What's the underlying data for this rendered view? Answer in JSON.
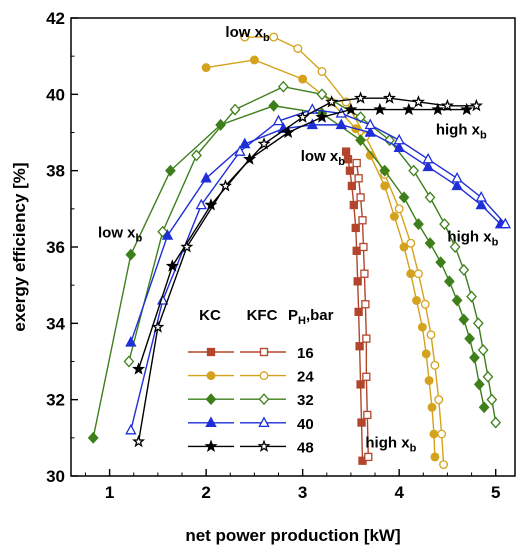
{
  "chart_data": {
    "type": "line",
    "xlabel": "net power production [kW]",
    "ylabel": "exergy efficiency [%]",
    "xlim": [
      0.6,
      5.2
    ],
    "ylim": [
      30,
      42
    ],
    "xticks": [
      1,
      2,
      3,
      4,
      5
    ],
    "yticks": [
      30,
      32,
      34,
      36,
      38,
      40,
      42
    ],
    "grid": false,
    "legend": {
      "position": "bottom-center",
      "col1": "KC",
      "col2": "KFC",
      "col3_main": "P",
      "col3_sub": "H",
      "col3_tail": ",bar",
      "labels": [
        "16",
        "24",
        "32",
        "40",
        "48"
      ]
    },
    "annotations": [
      {
        "main": "low x",
        "sub": "b",
        "x": 2.2,
        "y": 41.5
      },
      {
        "main": "low x",
        "sub": "b",
        "x": 2.98,
        "y": 38.25
      },
      {
        "main": "low x",
        "sub": "b",
        "x": 0.88,
        "y": 36.25
      },
      {
        "main": "high x",
        "sub": "b",
        "x": 4.38,
        "y": 38.95
      },
      {
        "main": "high x",
        "sub": "b",
        "x": 4.5,
        "y": 36.15
      },
      {
        "main": "high x",
        "sub": "b",
        "x": 3.65,
        "y": 30.75
      }
    ],
    "series": [
      {
        "group": "KC",
        "legend_label": "16",
        "color": "#b2452c",
        "marker": "square",
        "filled": true,
        "x": [
          3.62,
          3.61,
          3.6,
          3.59,
          3.58,
          3.57,
          3.56,
          3.55,
          3.53,
          3.51,
          3.49,
          3.47,
          3.45
        ],
        "y": [
          30.4,
          31.4,
          32.4,
          33.4,
          34.3,
          35.1,
          35.9,
          36.5,
          37.1,
          37.6,
          38.0,
          38.3,
          38.5
        ]
      },
      {
        "group": "KFC",
        "legend_label": "16",
        "color": "#b2452c",
        "marker": "square",
        "filled": false,
        "x": [
          3.68,
          3.67,
          3.66,
          3.66,
          3.65,
          3.64,
          3.63,
          3.62,
          3.6,
          3.58,
          3.56
        ],
        "y": [
          30.5,
          31.6,
          32.6,
          33.6,
          34.5,
          35.3,
          36.0,
          36.7,
          37.3,
          37.8,
          38.2
        ]
      },
      {
        "group": "KC",
        "legend_label": "24",
        "color": "#d4a21c",
        "marker": "circle",
        "filled": true,
        "x": [
          2.0,
          2.5,
          3.0,
          3.3,
          3.55,
          3.7,
          3.85,
          3.95,
          4.05,
          4.12,
          4.18,
          4.24,
          4.28,
          4.31,
          4.34,
          4.36,
          4.37
        ],
        "y": [
          40.7,
          40.9,
          40.4,
          39.8,
          39.1,
          38.4,
          37.6,
          36.8,
          36.0,
          35.3,
          34.6,
          33.9,
          33.2,
          32.5,
          31.8,
          31.1,
          30.5
        ]
      },
      {
        "group": "KFC",
        "legend_label": "24",
        "color": "#d4a21c",
        "marker": "circle",
        "filled": false,
        "x": [
          2.4,
          2.7,
          2.95,
          3.2,
          3.45,
          3.65,
          3.85,
          4.0,
          4.12,
          4.2,
          4.27,
          4.33,
          4.37,
          4.41,
          4.44,
          4.46
        ],
        "y": [
          41.5,
          41.5,
          41.2,
          40.6,
          39.8,
          38.9,
          37.9,
          37.0,
          36.1,
          35.3,
          34.5,
          33.7,
          32.9,
          32.0,
          31.1,
          30.3
        ]
      },
      {
        "group": "KC",
        "legend_label": "32",
        "color": "#3e7f1c",
        "marker": "diamond",
        "filled": true,
        "x": [
          0.83,
          1.22,
          1.63,
          2.15,
          2.7,
          3.2,
          3.6,
          3.85,
          4.05,
          4.2,
          4.32,
          4.43,
          4.52,
          4.6,
          4.67,
          4.73,
          4.78,
          4.83,
          4.88
        ],
        "y": [
          31.0,
          35.8,
          38.0,
          39.2,
          39.7,
          39.5,
          38.8,
          38.0,
          37.3,
          36.6,
          36.1,
          35.6,
          35.1,
          34.6,
          34.1,
          33.6,
          33.1,
          32.4,
          31.8
        ]
      },
      {
        "group": "KFC",
        "legend_label": "32",
        "color": "#3e7f1c",
        "marker": "diamond",
        "filled": false,
        "x": [
          1.2,
          1.55,
          1.9,
          2.3,
          2.8,
          3.2,
          3.6,
          3.9,
          4.15,
          4.32,
          4.47,
          4.58,
          4.67,
          4.75,
          4.82,
          4.87,
          4.92,
          4.96,
          5.0
        ],
        "y": [
          33.0,
          36.4,
          38.4,
          39.6,
          40.2,
          40.0,
          39.4,
          38.8,
          38.0,
          37.3,
          36.6,
          36.0,
          35.4,
          34.7,
          34.0,
          33.3,
          32.6,
          32.0,
          31.4
        ]
      },
      {
        "group": "KC",
        "legend_label": "40",
        "color": "#1f2fd8",
        "marker": "triangle",
        "filled": true,
        "x": [
          1.22,
          1.6,
          2.0,
          2.4,
          2.8,
          3.1,
          3.4,
          3.7,
          4.0,
          4.3,
          4.6,
          4.85,
          5.05
        ],
        "y": [
          33.5,
          36.3,
          37.8,
          38.7,
          39.1,
          39.2,
          39.2,
          39.0,
          38.6,
          38.1,
          37.6,
          37.1,
          36.6
        ]
      },
      {
        "group": "KFC",
        "legend_label": "40",
        "color": "#1f2fd8",
        "marker": "triangle",
        "filled": false,
        "x": [
          1.22,
          1.55,
          1.95,
          2.35,
          2.75,
          3.1,
          3.4,
          3.7,
          4.0,
          4.3,
          4.6,
          4.85,
          5.1
        ],
        "y": [
          31.2,
          34.6,
          37.1,
          38.5,
          39.3,
          39.6,
          39.5,
          39.2,
          38.8,
          38.3,
          37.8,
          37.3,
          36.6
        ]
      },
      {
        "group": "KC",
        "legend_label": "48",
        "color": "#000000",
        "marker": "star",
        "filled": true,
        "x": [
          1.3,
          1.65,
          2.05,
          2.45,
          2.85,
          3.2,
          3.5,
          3.8,
          4.1,
          4.4,
          4.7
        ],
        "y": [
          32.8,
          35.5,
          37.1,
          38.3,
          39.0,
          39.4,
          39.6,
          39.6,
          39.6,
          39.6,
          39.6
        ]
      },
      {
        "group": "KFC",
        "legend_label": "48",
        "color": "#000000",
        "marker": "star",
        "filled": false,
        "x": [
          1.3,
          1.5,
          1.8,
          2.2,
          2.6,
          3.0,
          3.3,
          3.6,
          3.9,
          4.2,
          4.5,
          4.8
        ],
        "y": [
          30.9,
          33.9,
          36.0,
          37.6,
          38.7,
          39.4,
          39.8,
          39.9,
          39.9,
          39.8,
          39.7,
          39.7
        ]
      }
    ]
  }
}
